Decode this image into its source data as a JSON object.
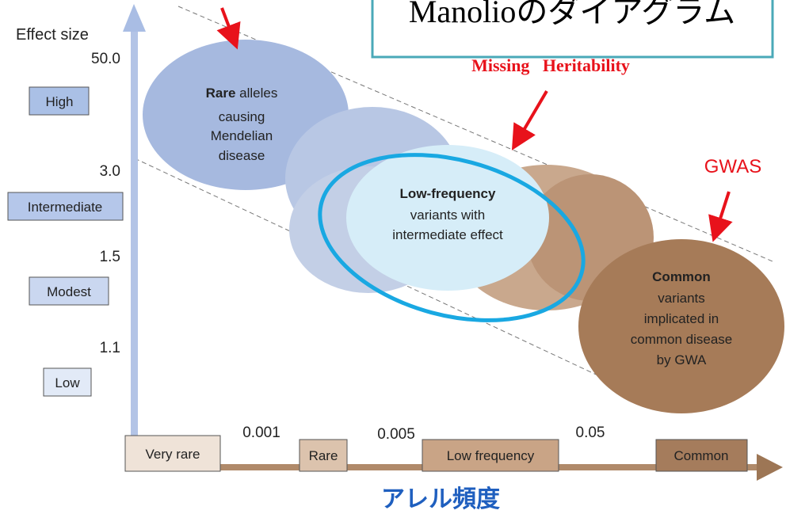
{
  "title": "Manolioのダイアグラム",
  "y_axis": {
    "label": "Effect size",
    "ticks": [
      "50.0",
      "3.0",
      "1.5",
      "1.1"
    ],
    "levels": [
      "High",
      "Intermediate",
      "Modest",
      "Low"
    ]
  },
  "x_axis": {
    "label": "アレル頻度",
    "ticks": [
      "0.001",
      "0.005",
      "0.05"
    ],
    "levels": [
      "Very rare",
      "Rare",
      "Low frequency",
      "Common"
    ]
  },
  "bubbles": [
    {
      "bold": "Rare",
      "rest": " alleles",
      "lines": [
        "causing",
        "Mendelian",
        "disease"
      ]
    },
    {
      "bold": "Low-frequency",
      "rest": "",
      "lines": [
        "variants with",
        "intermediate effect"
      ]
    },
    {
      "bold": "Common",
      "rest": "",
      "lines": [
        "variants",
        "implicated in",
        "common disease",
        "by GWA"
      ]
    }
  ],
  "annotations": {
    "missing": "Missing   Heritability",
    "gwas": "GWAS"
  }
}
